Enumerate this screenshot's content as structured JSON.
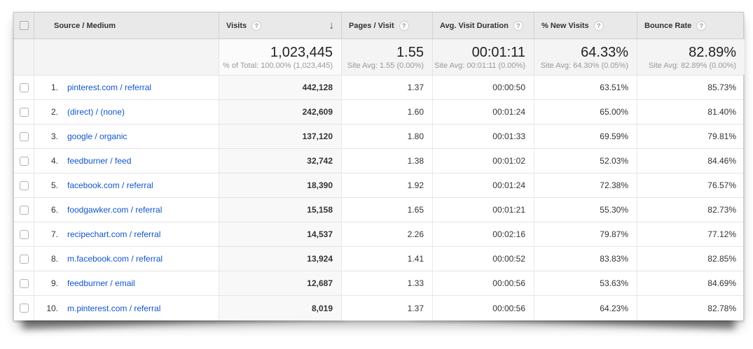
{
  "icons": {
    "help": "?",
    "sort_descending": "↓"
  },
  "colors": {
    "link_blue": "#1155cc",
    "header_bg": "#e9e9e9",
    "sorted_column_bg": "#f8f8f8",
    "summary_bg": "#f4f4f4"
  },
  "table": {
    "columns": {
      "source_medium": "Source / Medium",
      "visits": "Visits",
      "pages_per_visit": "Pages / Visit",
      "avg_visit_duration": "Avg. Visit Duration",
      "pct_new_visits": "% New Visits",
      "bounce_rate": "Bounce Rate"
    },
    "summary": {
      "visits": "1,023,445",
      "visits_sub": "% of Total: 100.00% (1,023,445)",
      "pages_per_visit": "1.55",
      "pages_sub": "Site Avg: 1.55 (0.00%)",
      "avg_visit_duration": "00:01:11",
      "duration_sub": "Site Avg: 00:01:11 (0.00%)",
      "pct_new_visits": "64.33%",
      "new_visits_sub": "Site Avg: 64.30% (0.05%)",
      "bounce_rate": "82.89%",
      "bounce_sub": "Site Avg: 82.89% (0.00%)"
    },
    "rows": [
      {
        "rank": "1.",
        "source": "pinterest.com / referral",
        "visits": "442,128",
        "pages": "1.37",
        "duration": "00:00:50",
        "new_visits": "63.51%",
        "bounce": "85.73%"
      },
      {
        "rank": "2.",
        "source": "(direct) / (none)",
        "visits": "242,609",
        "pages": "1.60",
        "duration": "00:01:24",
        "new_visits": "65.00%",
        "bounce": "81.40%"
      },
      {
        "rank": "3.",
        "source": "google / organic",
        "visits": "137,120",
        "pages": "1.80",
        "duration": "00:01:33",
        "new_visits": "69.59%",
        "bounce": "79.81%"
      },
      {
        "rank": "4.",
        "source": "feedburner / feed",
        "visits": "32,742",
        "pages": "1.38",
        "duration": "00:01:02",
        "new_visits": "52.03%",
        "bounce": "84.46%"
      },
      {
        "rank": "5.",
        "source": "facebook.com / referral",
        "visits": "18,390",
        "pages": "1.92",
        "duration": "00:01:24",
        "new_visits": "72.38%",
        "bounce": "76.57%"
      },
      {
        "rank": "6.",
        "source": "foodgawker.com / referral",
        "visits": "15,158",
        "pages": "1.65",
        "duration": "00:01:21",
        "new_visits": "55.30%",
        "bounce": "82.73%"
      },
      {
        "rank": "7.",
        "source": "recipechart.com / referral",
        "visits": "14,537",
        "pages": "2.26",
        "duration": "00:02:16",
        "new_visits": "79.87%",
        "bounce": "77.12%"
      },
      {
        "rank": "8.",
        "source": "m.facebook.com / referral",
        "visits": "13,924",
        "pages": "1.41",
        "duration": "00:00:52",
        "new_visits": "83.83%",
        "bounce": "82.85%"
      },
      {
        "rank": "9.",
        "source": "feedburner / email",
        "visits": "12,687",
        "pages": "1.33",
        "duration": "00:00:56",
        "new_visits": "53.63%",
        "bounce": "84.69%"
      },
      {
        "rank": "10.",
        "source": "m.pinterest.com / referral",
        "visits": "8,019",
        "pages": "1.37",
        "duration": "00:00:56",
        "new_visits": "64.23%",
        "bounce": "82.78%"
      }
    ]
  }
}
